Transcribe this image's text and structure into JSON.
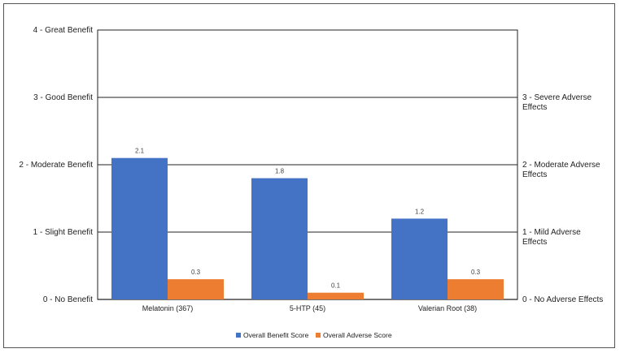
{
  "chart_data": {
    "type": "bar",
    "title": "",
    "categories": [
      "Melatonin (367)",
      "5-HTP (45)",
      "Valerian Root (38)"
    ],
    "series": [
      {
        "name": "Overall Benefit Score",
        "values": [
          2.1,
          1.8,
          1.2
        ],
        "color": "#4472C4"
      },
      {
        "name": "Overall Adverse Score",
        "values": [
          0.3,
          0.1,
          0.3
        ],
        "color": "#ED7D31"
      }
    ],
    "y_left": {
      "ylim": [
        0,
        4
      ],
      "tick_labels": [
        "0 - No Benefit",
        "1 - Slight Benefit",
        "2 - Moderate Benefit",
        "3 - Good Benefit",
        "4 - Great Benefit"
      ]
    },
    "y_right": {
      "ylim": [
        0,
        4
      ],
      "tick_labels": [
        [
          "0 - No Adverse Effects"
        ],
        [
          "1 - Mild Adverse",
          "Effects"
        ],
        [
          "2 - Moderate Adverse",
          "Effects"
        ],
        [
          "3 - Severe Adverse",
          "Effects"
        ]
      ]
    },
    "grid": true,
    "legend_position": "bottom"
  }
}
